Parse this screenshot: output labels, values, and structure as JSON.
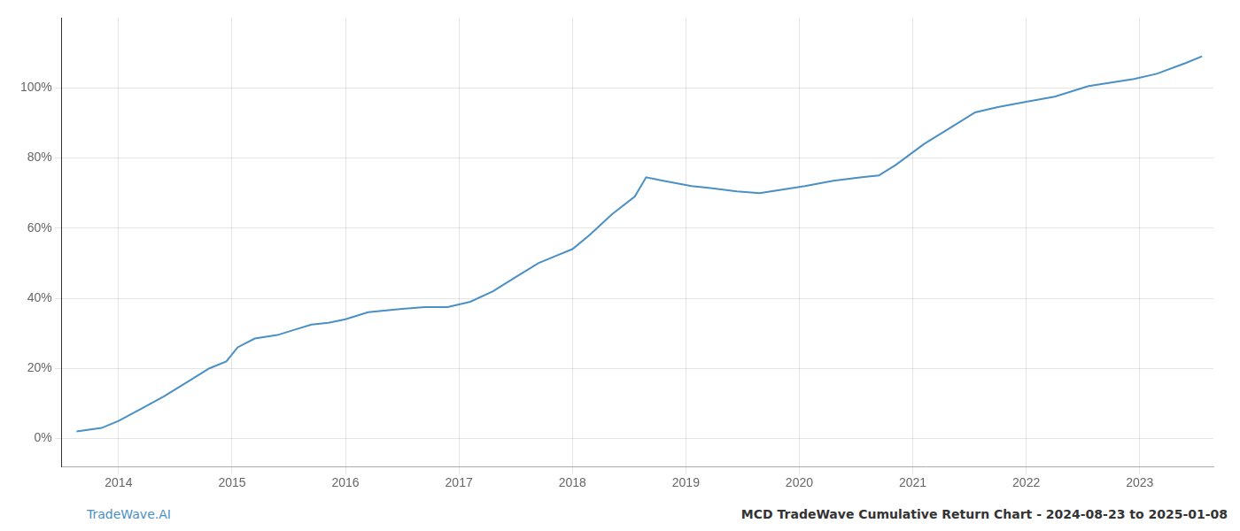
{
  "chart_data": {
    "type": "line",
    "x": [
      2013.63,
      2013.85,
      2014.0,
      2014.2,
      2014.4,
      2014.6,
      2014.8,
      2014.95,
      2015.05,
      2015.2,
      2015.4,
      2015.55,
      2015.7,
      2015.85,
      2016.0,
      2016.2,
      2016.5,
      2016.7,
      2016.9,
      2017.1,
      2017.3,
      2017.5,
      2017.7,
      2017.85,
      2018.0,
      2018.15,
      2018.35,
      2018.55,
      2018.65,
      2018.8,
      2019.05,
      2019.2,
      2019.45,
      2019.65,
      2019.85,
      2020.05,
      2020.3,
      2020.55,
      2020.7,
      2020.85,
      2021.1,
      2021.35,
      2021.55,
      2021.75,
      2022.0,
      2022.25,
      2022.55,
      2022.75,
      2022.95,
      2023.15,
      2023.4,
      2023.55
    ],
    "series": [
      {
        "color": "#4a90c4",
        "values": [
          2.0,
          3.0,
          5.0,
          8.5,
          12.0,
          16.0,
          20.0,
          22.0,
          26.0,
          28.5,
          29.5,
          31.0,
          32.5,
          33.0,
          34.0,
          36.0,
          37.0,
          37.5,
          37.5,
          39.0,
          42.0,
          46.0,
          50.0,
          52.0,
          54.0,
          58.0,
          64.0,
          69.0,
          74.5,
          73.5,
          72.0,
          71.5,
          70.5,
          70.0,
          71.0,
          72.0,
          73.5,
          74.5,
          75.0,
          78.0,
          84.0,
          89.0,
          93.0,
          94.5,
          96.0,
          97.5,
          100.5,
          101.5,
          102.5,
          104.0,
          107.0,
          109.0
        ]
      }
    ],
    "xlim": [
      2013.5,
      2023.65
    ],
    "ylim": [
      -8,
      120
    ],
    "xticks": [
      2014,
      2015,
      2016,
      2017,
      2018,
      2019,
      2020,
      2021,
      2022,
      2023
    ],
    "yticks": [
      {
        "value": 0,
        "label": "0%"
      },
      {
        "value": 20,
        "label": "20%"
      },
      {
        "value": 40,
        "label": "40%"
      },
      {
        "value": 60,
        "label": "60%"
      },
      {
        "value": 80,
        "label": "80%"
      },
      {
        "value": 100,
        "label": "100%"
      }
    ],
    "grid": true,
    "annotations": [
      "TradeWave.AI",
      "MCD TradeWave Cumulative Return Chart - 2024-08-23 to 2025-01-08"
    ]
  }
}
